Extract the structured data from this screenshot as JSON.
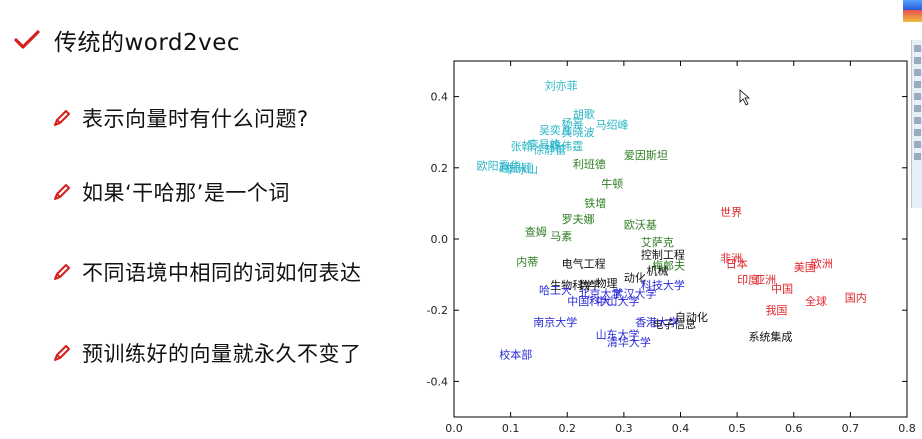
{
  "title": "传统的word2vec",
  "bullets": [
    "表示向量时有什么问题?",
    "如果‘干哈那’是一个词",
    "不同语境中相同的词如何表达",
    "预训练好的向量就永久不变了"
  ],
  "chart_data": {
    "type": "scatter",
    "xlim": [
      0.0,
      0.8
    ],
    "ylim": [
      -0.5,
      0.5
    ],
    "xticks": [
      0.0,
      0.1,
      0.2,
      0.3,
      0.4,
      0.5,
      0.6,
      0.7,
      0.8
    ],
    "yticks": [
      -0.4,
      -0.2,
      0.0,
      0.2,
      0.4
    ],
    "grid": false,
    "colors": {
      "cyan": "#2bb5c8",
      "green": "#2e7d22",
      "red": "#e0252a",
      "blue": "#2a2ad6",
      "black": "#111111"
    },
    "points": [
      {
        "label": "刘亦菲",
        "x": 0.16,
        "y": 0.42,
        "color": "cyan"
      },
      {
        "label": "胡歌",
        "x": 0.21,
        "y": 0.34,
        "color": "cyan"
      },
      {
        "label": "杨幂",
        "x": 0.19,
        "y": 0.315,
        "color": "cyan"
      },
      {
        "label": "马绍峰",
        "x": 0.25,
        "y": 0.31,
        "color": "cyan"
      },
      {
        "label": "吴奕凡",
        "x": 0.15,
        "y": 0.295,
        "color": "cyan"
      },
      {
        "label": "黄晓波",
        "x": 0.19,
        "y": 0.29,
        "color": "cyan"
      },
      {
        "label": "张翰",
        "x": 0.1,
        "y": 0.25,
        "color": "cyan"
      },
      {
        "label": "李易峰",
        "x": 0.13,
        "y": 0.255,
        "color": "cyan"
      },
      {
        "label": "陈伟霆",
        "x": 0.17,
        "y": 0.25,
        "color": "cyan"
      },
      {
        "label": "徐静蕾",
        "x": 0.14,
        "y": 0.24,
        "color": "cyan"
      },
      {
        "label": "赵丽颖",
        "x": 0.08,
        "y": 0.19,
        "color": "cyan"
      },
      {
        "label": "欧阳震华",
        "x": 0.04,
        "y": 0.195,
        "color": "cyan"
      },
      {
        "label": "李冰山",
        "x": 0.09,
        "y": 0.185,
        "color": "cyan"
      },
      {
        "label": "爱因斯坦",
        "x": 0.3,
        "y": 0.225,
        "color": "green"
      },
      {
        "label": "利班德",
        "x": 0.21,
        "y": 0.2,
        "color": "green"
      },
      {
        "label": "牛顿",
        "x": 0.26,
        "y": 0.145,
        "color": "green"
      },
      {
        "label": "铁增",
        "x": 0.23,
        "y": 0.09,
        "color": "green"
      },
      {
        "label": "罗夫娜",
        "x": 0.19,
        "y": 0.045,
        "color": "green"
      },
      {
        "label": "欧沃基",
        "x": 0.3,
        "y": 0.03,
        "color": "green"
      },
      {
        "label": "查姆",
        "x": 0.125,
        "y": 0.01,
        "color": "green"
      },
      {
        "label": "马素",
        "x": 0.17,
        "y": -0.003,
        "color": "green"
      },
      {
        "label": "艾萨克",
        "x": 0.33,
        "y": -0.02,
        "color": "green"
      },
      {
        "label": "内蒂",
        "x": 0.11,
        "y": -0.075,
        "color": "green"
      },
      {
        "label": "梅郎夫",
        "x": 0.35,
        "y": -0.085,
        "color": "green"
      },
      {
        "label": "世界",
        "x": 0.47,
        "y": 0.065,
        "color": "red"
      },
      {
        "label": "非洲",
        "x": 0.47,
        "y": -0.065,
        "color": "red"
      },
      {
        "label": "日本",
        "x": 0.48,
        "y": -0.08,
        "color": "red"
      },
      {
        "label": "欧洲",
        "x": 0.63,
        "y": -0.08,
        "color": "red"
      },
      {
        "label": "美国",
        "x": 0.6,
        "y": -0.09,
        "color": "red"
      },
      {
        "label": "印度",
        "x": 0.5,
        "y": -0.125,
        "color": "red"
      },
      {
        "label": "亚洲",
        "x": 0.53,
        "y": -0.125,
        "color": "red"
      },
      {
        "label": "中国",
        "x": 0.56,
        "y": -0.15,
        "color": "red"
      },
      {
        "label": "全球",
        "x": 0.62,
        "y": -0.185,
        "color": "red"
      },
      {
        "label": "国内",
        "x": 0.69,
        "y": -0.175,
        "color": "red"
      },
      {
        "label": "我国",
        "x": 0.55,
        "y": -0.21,
        "color": "red"
      },
      {
        "label": "控制工程",
        "x": 0.33,
        "y": -0.055,
        "color": "black"
      },
      {
        "label": "电气工程",
        "x": 0.19,
        "y": -0.08,
        "color": "black"
      },
      {
        "label": "机械",
        "x": 0.34,
        "y": -0.1,
        "color": "black"
      },
      {
        "label": "动化",
        "x": 0.3,
        "y": -0.12,
        "color": "black"
      },
      {
        "label": "生物科学",
        "x": 0.17,
        "y": -0.14,
        "color": "black"
      },
      {
        "label": "数学",
        "x": 0.22,
        "y": -0.14,
        "color": "black"
      },
      {
        "label": "物理",
        "x": 0.25,
        "y": -0.135,
        "color": "black"
      },
      {
        "label": "自动化",
        "x": 0.39,
        "y": -0.23,
        "color": "black"
      },
      {
        "label": "电子信息",
        "x": 0.35,
        "y": -0.25,
        "color": "black"
      },
      {
        "label": "系统集成",
        "x": 0.52,
        "y": -0.285,
        "color": "black"
      },
      {
        "label": "哈工大",
        "x": 0.15,
        "y": -0.155,
        "color": "blue"
      },
      {
        "label": "北京大学",
        "x": 0.22,
        "y": -0.165,
        "color": "blue"
      },
      {
        "label": "武汉大学",
        "x": 0.28,
        "y": -0.165,
        "color": "blue"
      },
      {
        "label": "科技大学",
        "x": 0.33,
        "y": -0.14,
        "color": "blue"
      },
      {
        "label": "中国科大",
        "x": 0.2,
        "y": -0.185,
        "color": "blue"
      },
      {
        "label": "中山大学",
        "x": 0.25,
        "y": -0.185,
        "color": "blue"
      },
      {
        "label": "南京大学",
        "x": 0.14,
        "y": -0.245,
        "color": "blue"
      },
      {
        "label": "香港大学",
        "x": 0.32,
        "y": -0.245,
        "color": "blue"
      },
      {
        "label": "山东大学",
        "x": 0.25,
        "y": -0.28,
        "color": "blue"
      },
      {
        "label": "清华大学",
        "x": 0.27,
        "y": -0.3,
        "color": "blue"
      },
      {
        "label": "校本部",
        "x": 0.08,
        "y": -0.335,
        "color": "blue"
      }
    ]
  }
}
